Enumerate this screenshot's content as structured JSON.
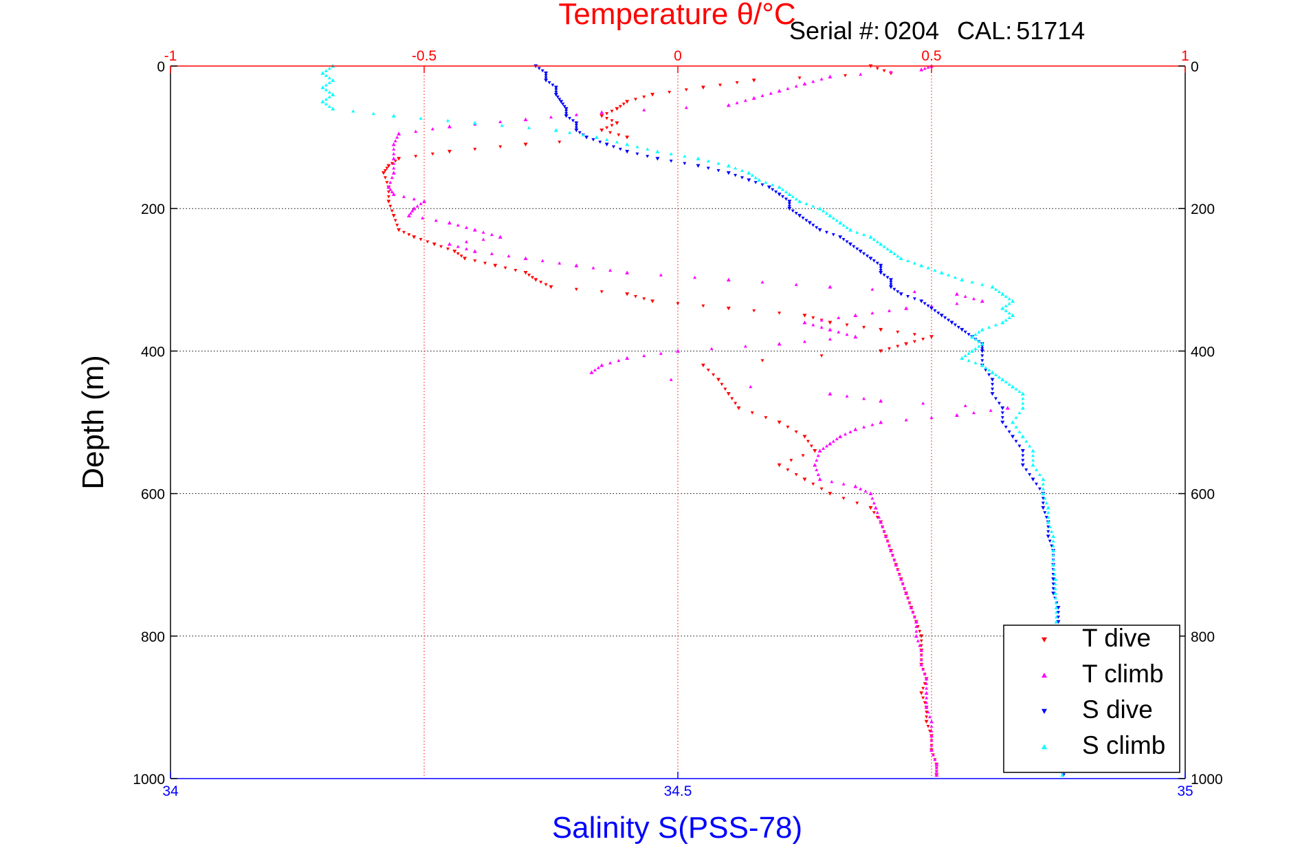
{
  "chart_data": {
    "type": "scatter",
    "title": "Temperature θ/°C",
    "header_info": {
      "serial_label": "Serial #:",
      "serial": "0204",
      "cal_label": "CAL:",
      "cal": "51714"
    },
    "ylabel": "Depth (m)",
    "xlabel_bottom": "Salinity S(PSS-78)",
    "xlabel_top": "Temperature θ/°C",
    "y_axis": {
      "range": [
        0,
        1000
      ],
      "inverted": true,
      "ticks": [
        0,
        200,
        400,
        600,
        800,
        1000
      ]
    },
    "x_axis_bottom": {
      "range": [
        34,
        35
      ],
      "ticks": [
        34,
        34.5,
        35
      ],
      "tick_labels": [
        "34",
        "34.5",
        "35"
      ]
    },
    "x_axis_top": {
      "range": [
        -1,
        1
      ],
      "ticks": [
        -1,
        -0.5,
        0,
        0.5,
        1
      ],
      "tick_labels": [
        "-1",
        "-0.5",
        "0",
        "0.5",
        "1"
      ]
    },
    "grid": {
      "vertical": "top temperature ticks (red dotted)",
      "horizontal": "depth ticks (black dotted)"
    },
    "legend": {
      "position": "bottom-right"
    },
    "colors": {
      "temperature_axis": "#ff0000",
      "salinity_axis": "#0000ff",
      "t_dive": "#ff0000",
      "t_climb": "#ff00ff",
      "s_dive": "#0000ff",
      "s_climb": "#00ffff"
    },
    "series": [
      {
        "name": "T dive",
        "axis": "temperature",
        "marker": "triangle-down",
        "color": "#ff0000",
        "points": [
          [
            0.38,
            0
          ],
          [
            0.42,
            10
          ],
          [
            0.15,
            20
          ],
          [
            0.05,
            30
          ],
          [
            -0.05,
            40
          ],
          [
            -0.1,
            50
          ],
          [
            -0.12,
            60
          ],
          [
            -0.15,
            70
          ],
          [
            -0.12,
            80
          ],
          [
            -0.15,
            90
          ],
          [
            -0.1,
            100
          ],
          [
            -0.3,
            110
          ],
          [
            -0.45,
            120
          ],
          [
            -0.55,
            130
          ],
          [
            -0.57,
            140
          ],
          [
            -0.58,
            150
          ],
          [
            -0.57,
            170
          ],
          [
            -0.57,
            190
          ],
          [
            -0.56,
            210
          ],
          [
            -0.55,
            230
          ],
          [
            -0.52,
            240
          ],
          [
            -0.48,
            250
          ],
          [
            -0.44,
            260
          ],
          [
            -0.42,
            270
          ],
          [
            -0.36,
            280
          ],
          [
            -0.3,
            290
          ],
          [
            -0.28,
            300
          ],
          [
            -0.25,
            310
          ],
          [
            -0.1,
            320
          ],
          [
            -0.05,
            330
          ],
          [
            0.1,
            340
          ],
          [
            0.25,
            350
          ],
          [
            0.3,
            360
          ],
          [
            0.4,
            370
          ],
          [
            0.5,
            380
          ],
          [
            0.45,
            390
          ],
          [
            0.4,
            400
          ],
          [
            0.05,
            420
          ],
          [
            0.08,
            440
          ],
          [
            0.1,
            460
          ],
          [
            0.12,
            480
          ],
          [
            0.2,
            500
          ],
          [
            0.25,
            520
          ],
          [
            0.27,
            540
          ],
          [
            0.2,
            560
          ],
          [
            0.25,
            580
          ],
          [
            0.3,
            600
          ],
          [
            0.38,
            620
          ],
          [
            0.4,
            640
          ],
          [
            0.41,
            660
          ],
          [
            0.42,
            680
          ],
          [
            0.43,
            700
          ],
          [
            0.44,
            720
          ],
          [
            0.45,
            740
          ],
          [
            0.46,
            760
          ],
          [
            0.47,
            780
          ],
          [
            0.48,
            800
          ],
          [
            0.48,
            820
          ],
          [
            0.48,
            840
          ],
          [
            0.49,
            860
          ],
          [
            0.48,
            880
          ],
          [
            0.49,
            900
          ],
          [
            0.49,
            920
          ],
          [
            0.5,
            940
          ],
          [
            0.5,
            960
          ],
          [
            0.51,
            980
          ],
          [
            0.51,
            995
          ]
        ]
      },
      {
        "name": "T climb",
        "axis": "temperature",
        "marker": "triangle-up",
        "color": "#ff00ff",
        "points": [
          [
            0.5,
            0
          ],
          [
            0.48,
            5
          ],
          [
            0.3,
            15
          ],
          [
            0.25,
            25
          ],
          [
            0.2,
            35
          ],
          [
            0.15,
            45
          ],
          [
            0.1,
            55
          ],
          [
            -0.15,
            65
          ],
          [
            -0.3,
            75
          ],
          [
            -0.45,
            85
          ],
          [
            -0.55,
            95
          ],
          [
            -0.56,
            110
          ],
          [
            -0.56,
            130
          ],
          [
            -0.56,
            150
          ],
          [
            -0.57,
            170
          ],
          [
            -0.56,
            180
          ],
          [
            -0.5,
            190
          ],
          [
            -0.52,
            200
          ],
          [
            -0.53,
            210
          ],
          [
            -0.45,
            220
          ],
          [
            -0.4,
            230
          ],
          [
            -0.35,
            240
          ],
          [
            -0.45,
            250
          ],
          [
            -0.4,
            260
          ],
          [
            -0.3,
            270
          ],
          [
            -0.2,
            280
          ],
          [
            -0.1,
            290
          ],
          [
            0.1,
            300
          ],
          [
            0.3,
            310
          ],
          [
            0.55,
            320
          ],
          [
            0.6,
            330
          ],
          [
            0.45,
            340
          ],
          [
            0.35,
            350
          ],
          [
            0.25,
            360
          ],
          [
            0.3,
            370
          ],
          [
            0.35,
            380
          ],
          [
            0.2,
            390
          ],
          [
            0.0,
            400
          ],
          [
            -0.1,
            410
          ],
          [
            -0.15,
            420
          ],
          [
            -0.17,
            430
          ],
          [
            0.3,
            460
          ],
          [
            0.4,
            470
          ],
          [
            0.65,
            480
          ],
          [
            0.55,
            490
          ],
          [
            0.4,
            500
          ],
          [
            0.35,
            510
          ],
          [
            0.32,
            520
          ],
          [
            0.3,
            530
          ],
          [
            0.28,
            540
          ],
          [
            0.27,
            560
          ],
          [
            0.28,
            580
          ],
          [
            0.35,
            590
          ],
          [
            0.38,
            600
          ],
          [
            0.39,
            620
          ],
          [
            0.4,
            640
          ],
          [
            0.41,
            660
          ],
          [
            0.42,
            680
          ],
          [
            0.43,
            700
          ],
          [
            0.44,
            720
          ],
          [
            0.45,
            740
          ],
          [
            0.46,
            760
          ],
          [
            0.47,
            780
          ],
          [
            0.47,
            800
          ],
          [
            0.48,
            820
          ],
          [
            0.48,
            840
          ],
          [
            0.49,
            860
          ],
          [
            0.49,
            880
          ],
          [
            0.49,
            900
          ],
          [
            0.5,
            920
          ],
          [
            0.5,
            940
          ],
          [
            0.5,
            960
          ],
          [
            0.51,
            980
          ],
          [
            0.51,
            995
          ]
        ]
      },
      {
        "name": "S dive",
        "axis": "salinity",
        "marker": "triangle-down",
        "color": "#0000ff",
        "points": [
          [
            34.36,
            0
          ],
          [
            34.37,
            10
          ],
          [
            34.37,
            20
          ],
          [
            34.38,
            30
          ],
          [
            34.38,
            40
          ],
          [
            34.385,
            50
          ],
          [
            34.39,
            60
          ],
          [
            34.39,
            70
          ],
          [
            34.4,
            80
          ],
          [
            34.4,
            90
          ],
          [
            34.41,
            100
          ],
          [
            34.43,
            110
          ],
          [
            34.45,
            120
          ],
          [
            34.48,
            130
          ],
          [
            34.52,
            140
          ],
          [
            34.55,
            150
          ],
          [
            34.57,
            160
          ],
          [
            34.59,
            170
          ],
          [
            34.6,
            180
          ],
          [
            34.61,
            190
          ],
          [
            34.61,
            200
          ],
          [
            34.62,
            210
          ],
          [
            34.63,
            220
          ],
          [
            34.64,
            230
          ],
          [
            34.66,
            240
          ],
          [
            34.67,
            250
          ],
          [
            34.68,
            260
          ],
          [
            34.69,
            270
          ],
          [
            34.7,
            280
          ],
          [
            34.7,
            290
          ],
          [
            34.71,
            300
          ],
          [
            34.71,
            310
          ],
          [
            34.72,
            320
          ],
          [
            34.74,
            330
          ],
          [
            34.75,
            340
          ],
          [
            34.76,
            350
          ],
          [
            34.77,
            360
          ],
          [
            34.78,
            370
          ],
          [
            34.79,
            380
          ],
          [
            34.8,
            390
          ],
          [
            34.8,
            400
          ],
          [
            34.8,
            420
          ],
          [
            34.81,
            440
          ],
          [
            34.81,
            460
          ],
          [
            34.82,
            480
          ],
          [
            34.82,
            500
          ],
          [
            34.83,
            520
          ],
          [
            34.84,
            540
          ],
          [
            34.84,
            560
          ],
          [
            34.85,
            580
          ],
          [
            34.86,
            600
          ],
          [
            34.86,
            620
          ],
          [
            34.865,
            640
          ],
          [
            34.865,
            660
          ],
          [
            34.87,
            680
          ],
          [
            34.87,
            700
          ],
          [
            34.87,
            720
          ],
          [
            34.87,
            740
          ],
          [
            34.875,
            760
          ],
          [
            34.875,
            780
          ],
          [
            34.875,
            800
          ],
          [
            34.875,
            820
          ],
          [
            34.875,
            840
          ],
          [
            34.877,
            860
          ],
          [
            34.877,
            880
          ],
          [
            34.877,
            900
          ],
          [
            34.878,
            920
          ],
          [
            34.878,
            940
          ],
          [
            34.878,
            960
          ],
          [
            34.88,
            980
          ],
          [
            34.88,
            995
          ]
        ]
      },
      {
        "name": "S climb",
        "axis": "salinity",
        "marker": "triangle-up",
        "color": "#00ffff",
        "points": [
          [
            34.16,
            0
          ],
          [
            34.15,
            10
          ],
          [
            34.16,
            20
          ],
          [
            34.15,
            30
          ],
          [
            34.16,
            40
          ],
          [
            34.15,
            50
          ],
          [
            34.16,
            60
          ],
          [
            34.22,
            70
          ],
          [
            34.3,
            80
          ],
          [
            34.38,
            90
          ],
          [
            34.42,
            100
          ],
          [
            34.45,
            110
          ],
          [
            34.48,
            120
          ],
          [
            34.52,
            130
          ],
          [
            34.55,
            140
          ],
          [
            34.57,
            150
          ],
          [
            34.58,
            160
          ],
          [
            34.6,
            170
          ],
          [
            34.61,
            180
          ],
          [
            34.62,
            190
          ],
          [
            34.64,
            200
          ],
          [
            34.65,
            210
          ],
          [
            34.66,
            220
          ],
          [
            34.67,
            230
          ],
          [
            34.69,
            240
          ],
          [
            34.7,
            250
          ],
          [
            34.71,
            260
          ],
          [
            34.72,
            270
          ],
          [
            34.74,
            280
          ],
          [
            34.76,
            290
          ],
          [
            34.78,
            300
          ],
          [
            34.81,
            310
          ],
          [
            34.82,
            320
          ],
          [
            34.83,
            330
          ],
          [
            34.82,
            340
          ],
          [
            34.83,
            350
          ],
          [
            34.82,
            360
          ],
          [
            34.8,
            370
          ],
          [
            34.79,
            380
          ],
          [
            34.8,
            390
          ],
          [
            34.79,
            400
          ],
          [
            34.78,
            410
          ],
          [
            34.8,
            420
          ],
          [
            34.81,
            430
          ],
          [
            34.82,
            440
          ],
          [
            34.83,
            450
          ],
          [
            34.84,
            460
          ],
          [
            34.84,
            480
          ],
          [
            34.83,
            500
          ],
          [
            34.84,
            520
          ],
          [
            34.85,
            540
          ],
          [
            34.85,
            560
          ],
          [
            34.86,
            580
          ],
          [
            34.86,
            600
          ],
          [
            34.865,
            620
          ],
          [
            34.865,
            640
          ],
          [
            34.87,
            660
          ],
          [
            34.87,
            680
          ],
          [
            34.87,
            700
          ],
          [
            34.872,
            720
          ],
          [
            34.872,
            740
          ],
          [
            34.873,
            760
          ],
          [
            34.873,
            780
          ],
          [
            34.874,
            800
          ],
          [
            34.874,
            820
          ],
          [
            34.875,
            840
          ],
          [
            34.876,
            860
          ],
          [
            34.876,
            880
          ],
          [
            34.877,
            900
          ],
          [
            34.877,
            920
          ],
          [
            34.878,
            940
          ],
          [
            34.878,
            960
          ],
          [
            34.879,
            980
          ],
          [
            34.879,
            995
          ]
        ]
      }
    ]
  }
}
